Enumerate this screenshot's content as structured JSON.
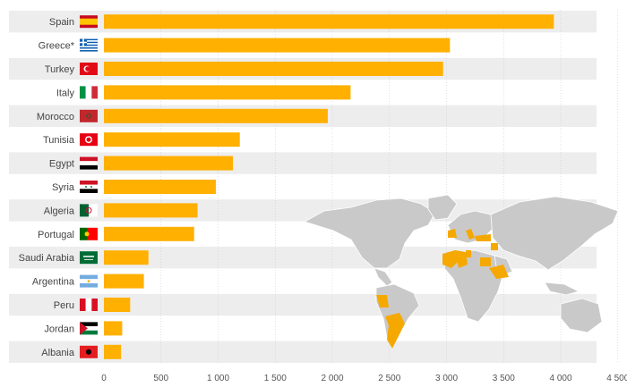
{
  "chart_data": {
    "type": "bar",
    "orientation": "horizontal",
    "categories": [
      "Spain",
      "Greece*",
      "Turkey",
      "Italy",
      "Morocco",
      "Tunisia",
      "Egypt",
      "Syria",
      "Algeria",
      "Portugal",
      "Saudi Arabia",
      "Argentina",
      "Peru",
      "Jordan",
      "Albania"
    ],
    "values": [
      3940,
      3030,
      2970,
      2160,
      1960,
      1190,
      1130,
      980,
      820,
      790,
      390,
      350,
      230,
      160,
      150
    ],
    "xlim": [
      0,
      4500
    ],
    "xticks": [
      "0",
      "500",
      "1 000",
      "1 500",
      "2 000",
      "2 500",
      "3 000",
      "3 500",
      "4 000",
      "4 500"
    ],
    "title": "",
    "xlabel": "",
    "ylabel": "",
    "grid": true,
    "flags": [
      "flag-spain",
      "flag-greece",
      "flag-turkey",
      "flag-italy",
      "flag-morocco",
      "flag-tunisia",
      "flag-egypt",
      "flag-syria",
      "flag-algeria",
      "flag-portugal",
      "flag-saudi-arabia",
      "flag-argentina",
      "flag-peru",
      "flag-jordan",
      "flag-albania"
    ],
    "decoration": "world-map-highlighting-producers"
  },
  "colors": {
    "bar": "#FFB000",
    "stripe": "#EDEDED",
    "grid": "#CCCCCC",
    "map_land": "#C9C9C9",
    "map_highlight": "#F5A800"
  }
}
